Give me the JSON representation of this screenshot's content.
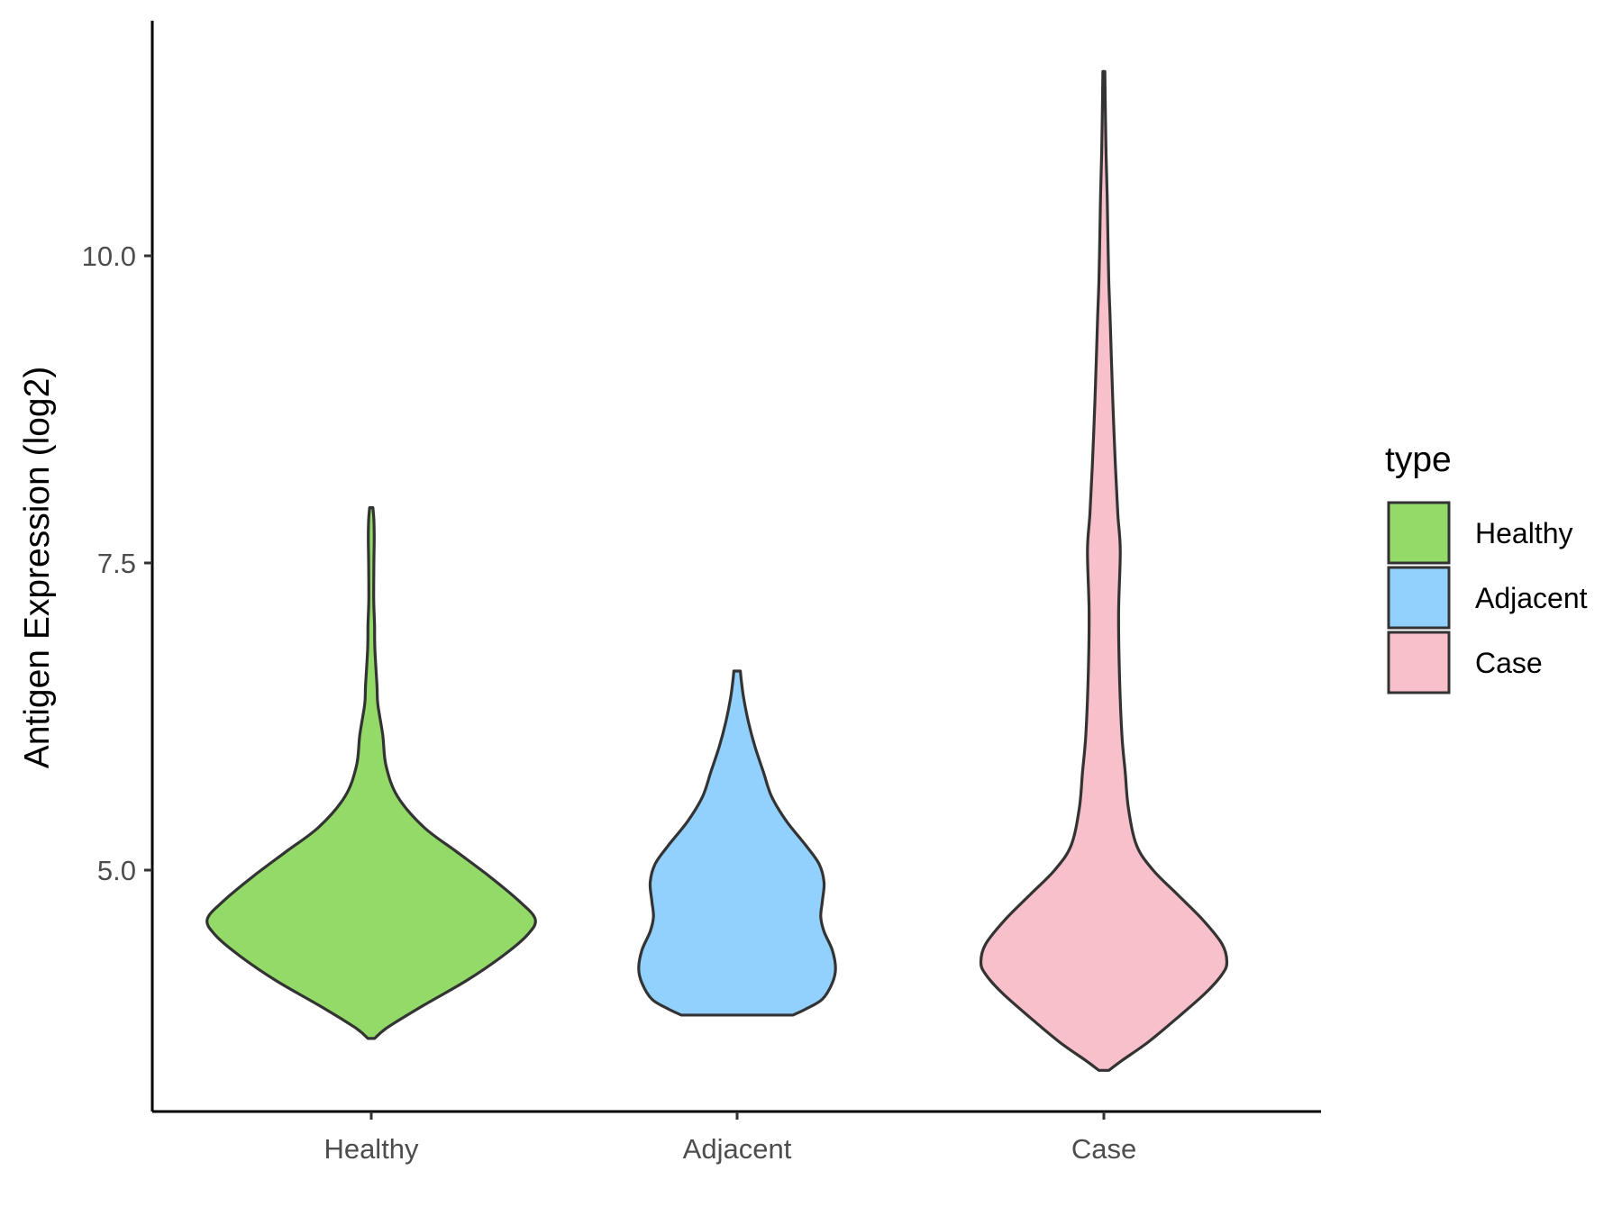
{
  "chart_data": {
    "type": "violin",
    "title": "",
    "xlabel": "",
    "ylabel": "Antigen Expression (log2)",
    "ylim": [
      3.0,
      12.0
    ],
    "yticks": [
      5.0,
      7.5,
      10.0
    ],
    "ytick_labels": [
      "5.0",
      "7.5",
      "10.0"
    ],
    "categories": [
      "Healthy",
      "Adjacent",
      "Case"
    ],
    "legend": {
      "title": "type",
      "position": "right",
      "entries": [
        "Healthy",
        "Adjacent",
        "Case"
      ]
    },
    "colors": {
      "Healthy": "#93da69",
      "Adjacent": "#92d1fe",
      "Case": "#f8c0cb",
      "outline": "#333333",
      "axis": "#000000"
    },
    "series": [
      {
        "name": "Healthy",
        "min": 3.63,
        "max": 7.95,
        "profile": [
          [
            3.63,
            0.02
          ],
          [
            3.72,
            0.1
          ],
          [
            3.9,
            0.32
          ],
          [
            4.1,
            0.58
          ],
          [
            4.3,
            0.8
          ],
          [
            4.47,
            0.95
          ],
          [
            4.6,
            1.0
          ],
          [
            4.75,
            0.9
          ],
          [
            4.95,
            0.72
          ],
          [
            5.15,
            0.52
          ],
          [
            5.35,
            0.32
          ],
          [
            5.6,
            0.16
          ],
          [
            5.85,
            0.09
          ],
          [
            6.1,
            0.07
          ],
          [
            6.35,
            0.04
          ],
          [
            6.5,
            0.035
          ],
          [
            6.8,
            0.022
          ],
          [
            7.0,
            0.02
          ],
          [
            7.2,
            0.015
          ],
          [
            7.5,
            0.016
          ],
          [
            7.7,
            0.018
          ],
          [
            7.85,
            0.016
          ],
          [
            7.95,
            0.01
          ]
        ]
      },
      {
        "name": "Adjacent",
        "min": 3.82,
        "max": 6.62,
        "profile": [
          [
            3.82,
            0.34
          ],
          [
            3.87,
            0.42
          ],
          [
            3.95,
            0.52
          ],
          [
            4.08,
            0.58
          ],
          [
            4.2,
            0.6
          ],
          [
            4.35,
            0.58
          ],
          [
            4.5,
            0.53
          ],
          [
            4.62,
            0.51
          ],
          [
            4.75,
            0.52
          ],
          [
            4.9,
            0.53
          ],
          [
            5.05,
            0.5
          ],
          [
            5.2,
            0.42
          ],
          [
            5.4,
            0.3
          ],
          [
            5.6,
            0.21
          ],
          [
            5.8,
            0.16
          ],
          [
            6.0,
            0.11
          ],
          [
            6.2,
            0.07
          ],
          [
            6.4,
            0.04
          ],
          [
            6.55,
            0.025
          ],
          [
            6.62,
            0.02
          ]
        ]
      },
      {
        "name": "Case",
        "min": 3.37,
        "max": 11.5,
        "profile": [
          [
            3.37,
            0.03
          ],
          [
            3.45,
            0.11
          ],
          [
            3.6,
            0.27
          ],
          [
            3.8,
            0.45
          ],
          [
            4.0,
            0.62
          ],
          [
            4.15,
            0.72
          ],
          [
            4.25,
            0.75
          ],
          [
            4.4,
            0.72
          ],
          [
            4.6,
            0.6
          ],
          [
            4.8,
            0.45
          ],
          [
            5.0,
            0.3
          ],
          [
            5.2,
            0.2
          ],
          [
            5.5,
            0.15
          ],
          [
            5.8,
            0.13
          ],
          [
            6.1,
            0.11
          ],
          [
            6.6,
            0.095
          ],
          [
            7.1,
            0.09
          ],
          [
            7.6,
            0.1
          ],
          [
            7.9,
            0.085
          ],
          [
            8.3,
            0.07
          ],
          [
            8.8,
            0.055
          ],
          [
            9.2,
            0.045
          ],
          [
            9.5,
            0.038
          ],
          [
            9.8,
            0.03
          ],
          [
            10.2,
            0.024
          ],
          [
            10.5,
            0.02
          ],
          [
            10.8,
            0.014
          ],
          [
            11.1,
            0.01
          ],
          [
            11.5,
            0.006
          ]
        ]
      }
    ]
  }
}
